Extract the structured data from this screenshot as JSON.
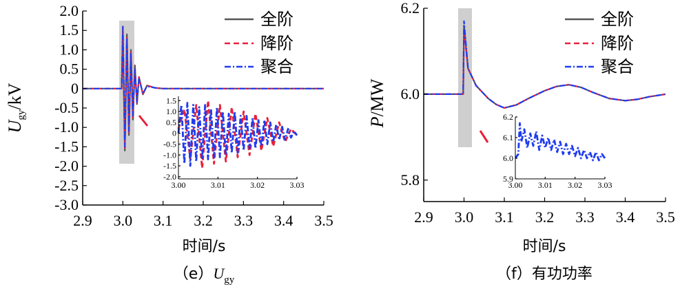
{
  "legend": [
    "全阶",
    "降阶",
    "聚合"
  ],
  "colors": {
    "full": "#555555",
    "reduced": "#e8203a",
    "aggregate": "#1f3cf0",
    "highlight": "#cfcfcf",
    "zoom_line": "#e8203a"
  },
  "chart_data": [
    {
      "type": "line",
      "caption": {
        "prefix": "（e）",
        "var": "U",
        "sub": "gy"
      },
      "ylabel": {
        "var": "U",
        "sub": "gy",
        "unit": "/kV"
      },
      "xlabel": "时间/s",
      "x_ticks": [
        "2.9",
        "3.0",
        "3.1",
        "3.2",
        "3.3",
        "3.4",
        "3.5"
      ],
      "y_ticks": [
        "2.0",
        "1.5",
        "1.0",
        "0.5",
        "0",
        "-0.5",
        "-1.0",
        "-1.5",
        "-2.0",
        "-2.5",
        "-3.0"
      ],
      "xlim": [
        2.9,
        3.5
      ],
      "ylim": [
        -3.0,
        2.0
      ],
      "highlight_x": [
        3.0,
        3.03
      ],
      "highlight_y": [
        -2.0,
        1.8
      ],
      "series": [
        {
          "name": "全阶",
          "x": [
            2.9,
            2.997,
            3.0,
            3.005,
            3.01,
            3.015,
            3.02,
            3.025,
            3.03,
            3.035,
            3.04,
            3.05,
            3.06,
            3.08,
            3.1,
            3.5
          ],
          "y": [
            0,
            0,
            1.6,
            -1.6,
            1.4,
            -1.2,
            1.0,
            -0.8,
            0.6,
            -0.4,
            0.3,
            -0.15,
            0.08,
            0.02,
            0,
            0
          ]
        },
        {
          "name": "降阶",
          "x": [
            2.9,
            2.997,
            3.0,
            3.005,
            3.01,
            3.015,
            3.02,
            3.025,
            3.03,
            3.035,
            3.04,
            3.05,
            3.06,
            3.08,
            3.1,
            3.5
          ],
          "y": [
            0,
            0,
            1.55,
            -1.55,
            1.35,
            -1.15,
            0.95,
            -0.75,
            0.55,
            -0.4,
            0.3,
            -0.15,
            0.08,
            0.02,
            0,
            0
          ]
        },
        {
          "name": "聚合",
          "x": [
            2.9,
            2.997,
            3.0,
            3.005,
            3.01,
            3.015,
            3.02,
            3.025,
            3.03,
            3.035,
            3.04,
            3.05,
            3.06,
            3.08,
            3.1,
            3.5
          ],
          "y": [
            0,
            0,
            1.6,
            -1.5,
            1.3,
            -1.1,
            0.9,
            -0.7,
            0.5,
            -0.35,
            0.25,
            -0.12,
            0.06,
            0.02,
            0,
            0
          ]
        }
      ],
      "inset": {
        "x_ticks": [
          "3.00",
          "3.01",
          "3.02",
          "3.03"
        ],
        "y_ticks": [
          "1.5",
          "1.0",
          "0.5",
          "0",
          "-0.5",
          "-1.0",
          "-1.5",
          "-2.0"
        ],
        "xlim": [
          3.0,
          3.03
        ],
        "ylim": [
          -2.1,
          1.7
        ],
        "series": [
          {
            "name": "降阶",
            "x": [
              3.0,
              3.0015,
              3.003,
              3.0045,
              3.006,
              3.0075,
              3.009,
              3.0105,
              3.012,
              3.0135,
              3.015,
              3.0165,
              3.018,
              3.0195,
              3.021,
              3.0225,
              3.024,
              3.0255,
              3.027,
              3.0285,
              3.03
            ],
            "y": [
              0.2,
              1.1,
              -1.2,
              1.3,
              -1.6,
              1.5,
              -1.4,
              1.3,
              -1.3,
              1.2,
              -1.1,
              1.0,
              -1.0,
              0.9,
              -0.8,
              0.7,
              -0.6,
              0.5,
              -0.4,
              0.2,
              -0.1
            ]
          },
          {
            "name": "聚合",
            "x": [
              3.0,
              3.00075,
              3.0015,
              3.00225,
              3.003,
              3.00375,
              3.0045,
              3.00525,
              3.006,
              3.00675,
              3.0075,
              3.00825,
              3.009,
              3.00975,
              3.0105,
              3.01125,
              3.012,
              3.01275,
              3.0135,
              3.01425,
              3.015,
              3.01575,
              3.0165,
              3.01725,
              3.018,
              3.01875,
              3.0195,
              3.02025,
              3.021,
              3.02175,
              3.0225,
              3.02325,
              3.024,
              3.02475,
              3.0255,
              3.02625,
              3.027,
              3.02775,
              3.0285,
              3.02925,
              3.03
            ],
            "y": [
              0,
              1.3,
              -1.4,
              1.4,
              -1.5,
              1.3,
              -1.3,
              1.2,
              -1.2,
              1.3,
              -1.2,
              1.1,
              -1.1,
              1.2,
              -1.1,
              1.0,
              -1.0,
              0.9,
              -0.9,
              1.0,
              -0.9,
              0.8,
              -0.8,
              0.8,
              -0.7,
              0.7,
              -0.7,
              0.6,
              -0.6,
              0.6,
              -0.5,
              0.5,
              -0.4,
              0.4,
              -0.3,
              0.3,
              -0.3,
              0.2,
              -0.2,
              0.1,
              -0.1
            ]
          }
        ]
      }
    },
    {
      "type": "line",
      "caption": {
        "prefix": "（f）",
        "text": "有功功率"
      },
      "ylabel": {
        "var": "P",
        "unit": "/MW"
      },
      "xlabel": "时间/s",
      "x_ticks": [
        "2.9",
        "3.0",
        "3.1",
        "3.2",
        "3.3",
        "3.4",
        "3.5"
      ],
      "y_ticks": [
        "6.2",
        "6.0",
        "5.8"
      ],
      "xlim": [
        2.9,
        3.5
      ],
      "ylim": [
        5.75,
        6.2
      ],
      "highlight_x": [
        3.0,
        3.04
      ],
      "highlight_y": [
        5.878,
        6.2
      ],
      "series": [
        {
          "name": "全阶",
          "x": [
            2.9,
            2.998,
            3.0,
            3.01,
            3.02,
            3.03,
            3.04,
            3.06,
            3.08,
            3.1,
            3.13,
            3.16,
            3.2,
            3.23,
            3.26,
            3.29,
            3.32,
            3.36,
            3.4,
            3.43,
            3.46,
            3.5
          ],
          "y": [
            6.0,
            6.0,
            6.16,
            6.06,
            6.04,
            6.02,
            6.01,
            5.99,
            5.976,
            5.968,
            5.975,
            5.99,
            6.008,
            6.018,
            6.022,
            6.016,
            6.004,
            5.99,
            5.985,
            5.988,
            5.994,
            6.0
          ]
        },
        {
          "name": "降阶",
          "x": [
            2.9,
            2.998,
            3.0,
            3.01,
            3.02,
            3.03,
            3.04,
            3.06,
            3.08,
            3.1,
            3.13,
            3.16,
            3.2,
            3.23,
            3.26,
            3.29,
            3.32,
            3.36,
            3.4,
            3.43,
            3.46,
            3.5
          ],
          "y": [
            6.0,
            6.0,
            6.15,
            6.06,
            6.04,
            6.02,
            6.01,
            5.99,
            5.976,
            5.968,
            5.975,
            5.99,
            6.008,
            6.018,
            6.022,
            6.016,
            6.004,
            5.99,
            5.985,
            5.988,
            5.994,
            6.0
          ]
        },
        {
          "name": "聚合",
          "x": [
            2.9,
            2.998,
            3.0,
            3.01,
            3.02,
            3.03,
            3.04,
            3.06,
            3.08,
            3.1,
            3.13,
            3.16,
            3.2,
            3.23,
            3.26,
            3.29,
            3.32,
            3.36,
            3.4,
            3.43,
            3.46,
            3.5
          ],
          "y": [
            6.0,
            6.0,
            6.17,
            6.06,
            6.04,
            6.02,
            6.01,
            5.99,
            5.976,
            5.968,
            5.975,
            5.99,
            6.008,
            6.018,
            6.022,
            6.016,
            6.004,
            5.99,
            5.985,
            5.988,
            5.994,
            6.0
          ]
        }
      ],
      "inset": {
        "x_ticks": [
          "3.00",
          "3.01",
          "3.02",
          "3.03"
        ],
        "y_ticks": [
          "6.2",
          "6.1",
          "6.0",
          "5.9"
        ],
        "xlim": [
          3.0,
          3.03
        ],
        "ylim": [
          5.9,
          6.2
        ],
        "series": [
          {
            "name": "聚合",
            "x": [
              3.0,
              3.001,
              3.0015,
              3.002,
              3.003,
              3.004,
              3.005,
              3.006,
              3.007,
              3.008,
              3.009,
              3.01,
              3.011,
              3.012,
              3.013,
              3.014,
              3.015,
              3.016,
              3.017,
              3.018,
              3.019,
              3.02,
              3.021,
              3.022,
              3.023,
              3.024,
              3.025,
              3.026,
              3.027,
              3.028,
              3.029,
              3.03
            ],
            "y": [
              6.0,
              6.02,
              6.17,
              6.08,
              6.14,
              6.05,
              6.12,
              6.06,
              6.13,
              6.04,
              6.11,
              6.05,
              6.1,
              6.04,
              6.09,
              6.03,
              6.08,
              6.02,
              6.07,
              6.02,
              6.06,
              6.01,
              6.05,
              6.0,
              6.04,
              6.0,
              6.03,
              5.99,
              6.03,
              5.99,
              6.02,
              6.0
            ]
          }
        ]
      }
    }
  ]
}
